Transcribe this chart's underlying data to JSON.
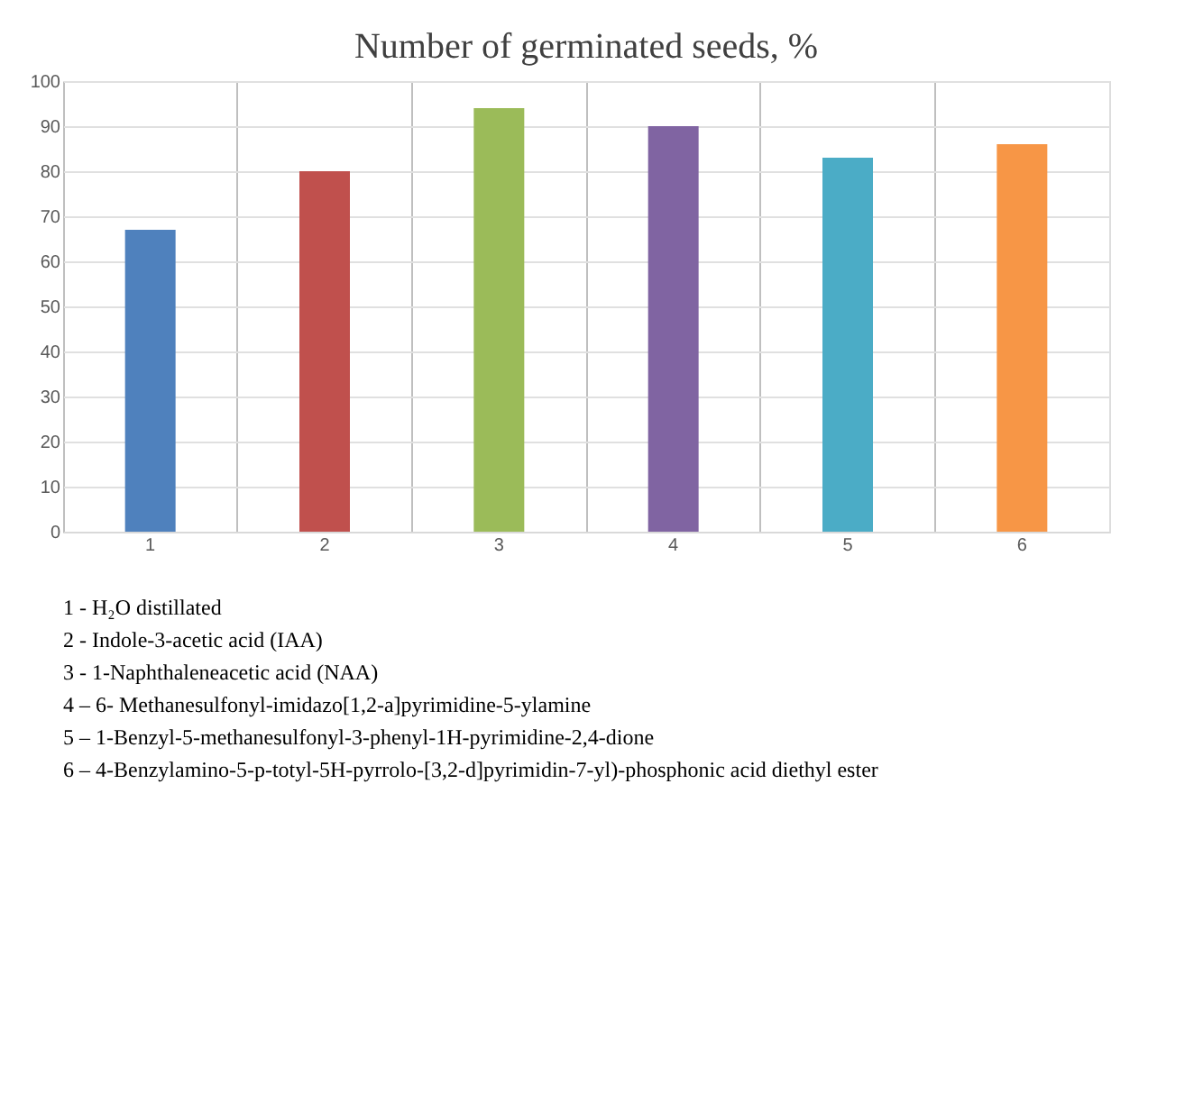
{
  "chart_data": {
    "type": "bar",
    "title": "Number of germinated seeds, %",
    "categories": [
      "1",
      "2",
      "3",
      "4",
      "5",
      "6"
    ],
    "values": [
      67,
      80,
      94,
      90,
      83,
      86
    ],
    "colors": [
      "#4f81bd",
      "#c0504d",
      "#9bbb59",
      "#8064a2",
      "#4bacc6",
      "#f79646"
    ],
    "ylim": [
      0,
      100
    ],
    "yticks": [
      0,
      10,
      20,
      30,
      40,
      50,
      60,
      70,
      80,
      90,
      100
    ],
    "grid": true,
    "annotations": [
      "1 - H₂O distillated",
      "2 - Indole-3-acetic  acid  (IAA)",
      "3 - 1-Naphthaleneacetic  acid (NAA)",
      "4 – 6- Methanesulfonyl-imidazo[1,2-a]pyrimidine-5-ylamine",
      "5 – 1-Benzyl-5-methanesulfonyl-3-phenyl-1H-pyrimidine-2,4-dione",
      "6 – 4-Benzylamino-5-p-totyl-5H-pyrrolo-[3,2-d]pyrimidin-7-yl)-phosphonic  acid diethyl ester"
    ]
  }
}
